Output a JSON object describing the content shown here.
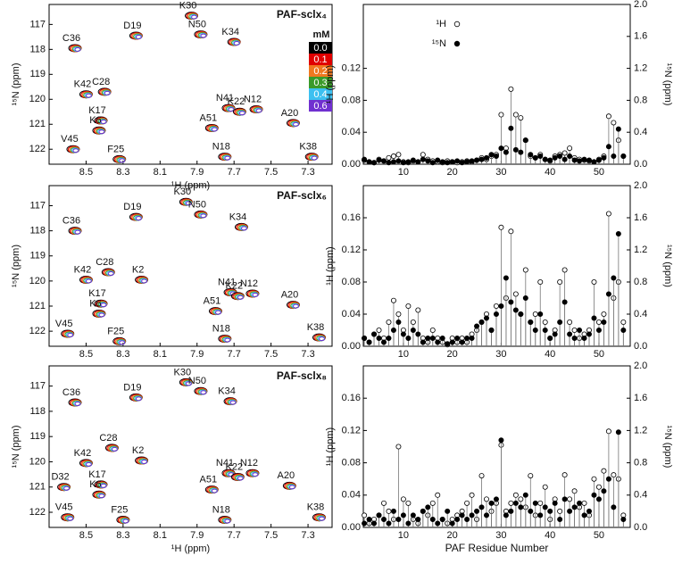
{
  "chart_data": [
    {
      "type": "nmr",
      "title": "PAF-sclx₄",
      "xlabel": "¹H (ppm)",
      "ylabel": "¹⁵N (ppm)",
      "xlim": [
        8.7,
        7.17
      ],
      "ylim": [
        116.2,
        122.6
      ],
      "xticks": [
        8.5,
        8.3,
        8.1,
        7.9,
        7.7,
        7.5,
        7.3
      ],
      "yticks": [
        117,
        118,
        119,
        120,
        121,
        122
      ],
      "contour_colors": [
        "#000000",
        "#e00000",
        "#f07820",
        "#3a9a2a",
        "#3cc0f0",
        "#7030d0"
      ],
      "legend_title": "mM",
      "legend_labels": [
        "0.0",
        "0.1",
        "0.2",
        "0.3",
        "0.4",
        "0.6"
      ],
      "peaks": [
        {
          "label": "C36",
          "x": 8.56,
          "y": 117.95
        },
        {
          "label": "D19",
          "x": 8.23,
          "y": 117.45
        },
        {
          "label": "K30",
          "x": 7.93,
          "y": 116.65
        },
        {
          "label": "N50",
          "x": 7.88,
          "y": 117.4
        },
        {
          "label": "K34",
          "x": 7.7,
          "y": 117.7
        },
        {
          "label": "C28",
          "x": 8.4,
          "y": 119.7
        },
        {
          "label": "K42",
          "x": 8.5,
          "y": 119.8
        },
        {
          "label": "K17",
          "x": 8.42,
          "y": 120.85
        },
        {
          "label": "K6",
          "x": 8.43,
          "y": 121.25
        },
        {
          "label": "V45",
          "x": 8.57,
          "y": 122.0
        },
        {
          "label": "F25",
          "x": 8.32,
          "y": 122.4
        },
        {
          "label": "N41",
          "x": 7.73,
          "y": 120.35
        },
        {
          "label": "K22",
          "x": 7.67,
          "y": 120.5
        },
        {
          "label": "N12",
          "x": 7.58,
          "y": 120.4
        },
        {
          "label": "A51",
          "x": 7.82,
          "y": 121.15
        },
        {
          "label": "A20",
          "x": 7.38,
          "y": 120.95
        },
        {
          "label": "N18",
          "x": 7.75,
          "y": 122.3
        },
        {
          "label": "K38",
          "x": 7.28,
          "y": 122.3
        }
      ]
    },
    {
      "type": "lollipop",
      "ylabel": "¹H (ppm)",
      "y2label": "¹⁵N (ppm)",
      "legend_position": "upper left",
      "xlim": [
        1.8,
        56.4
      ],
      "xticks": [
        10,
        20,
        30,
        40,
        50
      ],
      "ylim": [
        0,
        0.2
      ],
      "yticks": [
        {
          "value": 0,
          "label": "0.00"
        },
        {
          "value": 0.04,
          "label": "0.04"
        },
        {
          "value": 0.08,
          "label": "0.08"
        },
        {
          "value": 0.12,
          "label": "0.12"
        }
      ],
      "y2lim": [
        0,
        2.0
      ],
      "y2ticks": [
        {
          "value": 0,
          "label": "0.0"
        },
        {
          "value": 0.4,
          "label": "0.4"
        },
        {
          "value": 0.8,
          "label": "0.8"
        },
        {
          "value": 1.2,
          "label": "1.2"
        },
        {
          "value": 1.6,
          "label": "1.6"
        },
        {
          "value": 2.0,
          "label": "2.0"
        }
      ],
      "x": [
        2,
        3,
        4,
        5,
        6,
        7,
        8,
        9,
        10,
        11,
        12,
        13,
        14,
        15,
        16,
        17,
        18,
        19,
        20,
        21,
        22,
        23,
        24,
        25,
        26,
        27,
        28,
        29,
        30,
        31,
        32,
        33,
        34,
        35,
        36,
        37,
        38,
        39,
        40,
        41,
        42,
        43,
        44,
        45,
        46,
        47,
        48,
        49,
        50,
        51,
        52,
        53,
        54,
        55
      ],
      "series": [
        {
          "name": "¹H",
          "color": "#ffffff",
          "values": [
            0.005,
            0.003,
            0.002,
            0.006,
            0.004,
            0.008,
            0.01,
            0.012,
            0.003,
            0.002,
            0.004,
            0.003,
            0.012,
            0.006,
            0.004,
            0.003,
            0.002,
            0.004,
            0.003,
            0.002,
            0.003,
            0.004,
            0.003,
            0.005,
            0.008,
            0.006,
            0.01,
            0.012,
            0.062,
            0.02,
            0.094,
            0.062,
            0.058,
            0.03,
            0.01,
            0.008,
            0.012,
            0.006,
            0.004,
            0.01,
            0.012,
            0.014,
            0.02,
            0.008,
            0.006,
            0.005,
            0.004,
            0.003,
            0.006,
            0.01,
            0.06,
            0.052,
            0.03,
            0.01
          ]
        },
        {
          "name": "¹⁵N",
          "color": "#000000",
          "axis": "y2",
          "values": [
            0.06,
            0.03,
            0.02,
            0.05,
            0.04,
            0.02,
            0.03,
            0.04,
            0.02,
            0.03,
            0.05,
            0.03,
            0.06,
            0.04,
            0.02,
            0.05,
            0.03,
            0.02,
            0.03,
            0.04,
            0.02,
            0.03,
            0.04,
            0.05,
            0.06,
            0.08,
            0.12,
            0.1,
            0.2,
            0.15,
            0.45,
            0.18,
            0.15,
            0.3,
            0.12,
            0.08,
            0.1,
            0.06,
            0.05,
            0.08,
            0.1,
            0.06,
            0.1,
            0.05,
            0.04,
            0.06,
            0.05,
            0.03,
            0.05,
            0.08,
            0.22,
            0.1,
            0.44,
            0.1
          ]
        }
      ]
    },
    {
      "type": "nmr",
      "title": "PAF-sclx₆",
      "xlim": [
        8.7,
        7.17
      ],
      "ylim": [
        116.2,
        122.6
      ],
      "xticks": [
        8.5,
        8.3,
        8.1,
        7.9,
        7.7,
        7.5,
        7.3
      ],
      "yticks": [
        117,
        118,
        119,
        120,
        121,
        122
      ],
      "ylabel": "¹⁵N (ppm)",
      "contour_colors": [
        "#000000",
        "#e00000",
        "#f07820",
        "#3a9a2a",
        "#3cc0f0",
        "#7030d0"
      ],
      "peaks": [
        {
          "label": "C36",
          "x": 8.56,
          "y": 118.0
        },
        {
          "label": "D19",
          "x": 8.23,
          "y": 117.45
        },
        {
          "label": "K30",
          "x": 7.96,
          "y": 116.85
        },
        {
          "label": "N50",
          "x": 7.88,
          "y": 117.35
        },
        {
          "label": "K34",
          "x": 7.66,
          "y": 117.85
        },
        {
          "label": "C28",
          "x": 8.38,
          "y": 119.65
        },
        {
          "label": "K42",
          "x": 8.5,
          "y": 119.95
        },
        {
          "label": "K2",
          "x": 8.2,
          "y": 119.95
        },
        {
          "label": "K17",
          "x": 8.42,
          "y": 120.9
        },
        {
          "label": "K6",
          "x": 8.43,
          "y": 121.3
        },
        {
          "label": "V45",
          "x": 8.6,
          "y": 122.1
        },
        {
          "label": "F25",
          "x": 8.32,
          "y": 122.4
        },
        {
          "label": "N41",
          "x": 7.72,
          "y": 120.45
        },
        {
          "label": "K22",
          "x": 7.68,
          "y": 120.6
        },
        {
          "label": "N12",
          "x": 7.6,
          "y": 120.5
        },
        {
          "label": "A51",
          "x": 7.8,
          "y": 121.2
        },
        {
          "label": "A20",
          "x": 7.38,
          "y": 120.95
        },
        {
          "label": "N18",
          "x": 7.75,
          "y": 122.3
        },
        {
          "label": "K38",
          "x": 7.24,
          "y": 122.25
        }
      ]
    },
    {
      "type": "lollipop",
      "ylabel": "¹H (ppm)",
      "y2label": "¹⁵N (ppm)",
      "xlim": [
        1.8,
        56.4
      ],
      "xticks": [
        10,
        20,
        30,
        40,
        50
      ],
      "ylim": [
        0,
        0.2
      ],
      "yticks": [
        {
          "value": 0,
          "label": "0.00"
        },
        {
          "value": 0.04,
          "label": "0.04"
        },
        {
          "value": 0.08,
          "label": "0.08"
        },
        {
          "value": 0.12,
          "label": "0.12"
        },
        {
          "value": 0.16,
          "label": "0.16"
        }
      ],
      "y2lim": [
        0,
        2.0
      ],
      "y2ticks": [
        {
          "value": 0,
          "label": "0.0"
        },
        {
          "value": 0.4,
          "label": "0.4"
        },
        {
          "value": 0.8,
          "label": "0.8"
        },
        {
          "value": 1.2,
          "label": "1.2"
        },
        {
          "value": 1.6,
          "label": "1.6"
        },
        {
          "value": 2.0,
          "label": "2.0"
        }
      ],
      "x": [
        2,
        3,
        4,
        5,
        6,
        7,
        8,
        9,
        10,
        11,
        12,
        13,
        14,
        15,
        16,
        17,
        18,
        19,
        20,
        21,
        22,
        23,
        24,
        25,
        26,
        27,
        28,
        29,
        30,
        31,
        32,
        33,
        34,
        35,
        36,
        37,
        38,
        39,
        40,
        41,
        42,
        43,
        44,
        45,
        46,
        47,
        48,
        49,
        50,
        51,
        52,
        53,
        54,
        55
      ],
      "series": [
        {
          "name": "¹H",
          "color": "#ffffff",
          "values": [
            0.01,
            0.005,
            0.015,
            0.02,
            0.01,
            0.03,
            0.057,
            0.04,
            0.02,
            0.05,
            0.03,
            0.045,
            0.01,
            0.005,
            0.02,
            0.01,
            0.005,
            0.002,
            0.01,
            0.005,
            0.01,
            0.005,
            0.015,
            0.02,
            0.03,
            0.04,
            0.02,
            0.05,
            0.148,
            0.06,
            0.143,
            0.065,
            0.04,
            0.095,
            0.03,
            0.04,
            0.08,
            0.03,
            0.01,
            0.02,
            0.08,
            0.095,
            0.03,
            0.02,
            0.01,
            0.015,
            0.02,
            0.08,
            0.03,
            0.04,
            0.165,
            0.06,
            0.08,
            0.03
          ]
        },
        {
          "name": "¹⁵N",
          "color": "#000000",
          "axis": "y2",
          "values": [
            0.1,
            0.05,
            0.15,
            0.1,
            0.05,
            0.1,
            0.2,
            0.3,
            0.15,
            0.1,
            0.2,
            0.15,
            0.05,
            0.1,
            0.1,
            0.05,
            0.1,
            0.03,
            0.05,
            0.1,
            0.05,
            0.1,
            0.1,
            0.25,
            0.3,
            0.35,
            0.2,
            0.4,
            0.5,
            0.85,
            0.55,
            0.45,
            0.4,
            0.6,
            0.3,
            0.2,
            0.4,
            0.2,
            0.1,
            0.15,
            0.3,
            0.55,
            0.15,
            0.1,
            0.2,
            0.1,
            0.15,
            0.35,
            0.2,
            0.3,
            0.65,
            0.85,
            1.4,
            0.2
          ]
        }
      ]
    },
    {
      "type": "nmr",
      "title": "PAF-sclx₈",
      "xlabel": "¹H (ppm)",
      "ylabel": "¹⁵N (ppm)",
      "xlim": [
        8.7,
        7.17
      ],
      "ylim": [
        116.2,
        122.6
      ],
      "xticks": [
        8.5,
        8.3,
        8.1,
        7.9,
        7.7,
        7.5,
        7.3
      ],
      "yticks": [
        117,
        118,
        119,
        120,
        121,
        122
      ],
      "contour_colors": [
        "#000000",
        "#e00000",
        "#f07820",
        "#3a9a2a",
        "#3cc0f0",
        "#7030d0"
      ],
      "peaks": [
        {
          "label": "C36",
          "x": 8.56,
          "y": 117.65
        },
        {
          "label": "D19",
          "x": 8.23,
          "y": 117.45
        },
        {
          "label": "K30",
          "x": 7.96,
          "y": 116.85
        },
        {
          "label": "N50",
          "x": 7.88,
          "y": 117.2
        },
        {
          "label": "K34",
          "x": 7.72,
          "y": 117.6
        },
        {
          "label": "C28",
          "x": 8.36,
          "y": 119.45
        },
        {
          "label": "K42",
          "x": 8.5,
          "y": 120.05
        },
        {
          "label": "K2",
          "x": 8.2,
          "y": 119.95
        },
        {
          "label": "D32",
          "x": 8.62,
          "y": 121.0
        },
        {
          "label": "K17",
          "x": 8.42,
          "y": 120.9
        },
        {
          "label": "K6",
          "x": 8.43,
          "y": 121.3
        },
        {
          "label": "V45",
          "x": 8.6,
          "y": 122.2
        },
        {
          "label": "F25",
          "x": 8.3,
          "y": 122.3
        },
        {
          "label": "N41",
          "x": 7.73,
          "y": 120.45
        },
        {
          "label": "K22",
          "x": 7.68,
          "y": 120.6
        },
        {
          "label": "N12",
          "x": 7.6,
          "y": 120.45
        },
        {
          "label": "A51",
          "x": 7.82,
          "y": 121.1
        },
        {
          "label": "A20",
          "x": 7.4,
          "y": 120.95
        },
        {
          "label": "N18",
          "x": 7.75,
          "y": 122.3
        },
        {
          "label": "K38",
          "x": 7.24,
          "y": 122.2
        }
      ]
    },
    {
      "type": "lollipop",
      "ylabel": "¹H (ppm)",
      "y2label": "¹⁵N (ppm)",
      "xlabel": "PAF Residue Number",
      "xlim": [
        1.8,
        56.4
      ],
      "xticks": [
        10,
        20,
        30,
        40,
        50
      ],
      "ylim": [
        0,
        0.2
      ],
      "yticks": [
        {
          "value": 0,
          "label": "0.00"
        },
        {
          "value": 0.04,
          "label": "0.04"
        },
        {
          "value": 0.08,
          "label": "0.08"
        },
        {
          "value": 0.12,
          "label": "0.12"
        },
        {
          "value": 0.16,
          "label": "0.16"
        }
      ],
      "y2lim": [
        0,
        2.0
      ],
      "y2ticks": [
        {
          "value": 0,
          "label": "0.0"
        },
        {
          "value": 0.4,
          "label": "0.4"
        },
        {
          "value": 0.8,
          "label": "0.8"
        },
        {
          "value": 1.2,
          "label": "1.2"
        },
        {
          "value": 1.6,
          "label": "1.6"
        },
        {
          "value": 2.0,
          "label": "2.0"
        }
      ],
      "x": [
        2,
        3,
        4,
        5,
        6,
        7,
        8,
        9,
        10,
        11,
        12,
        13,
        14,
        15,
        16,
        17,
        18,
        19,
        20,
        21,
        22,
        23,
        24,
        25,
        26,
        27,
        28,
        29,
        30,
        31,
        32,
        33,
        34,
        35,
        36,
        37,
        38,
        39,
        40,
        41,
        42,
        43,
        44,
        45,
        46,
        47,
        48,
        49,
        50,
        51,
        52,
        53,
        54,
        55
      ],
      "series": [
        {
          "name": "¹H",
          "color": "#ffffff",
          "values": [
            0.015,
            0.005,
            0.01,
            0.015,
            0.03,
            0.02,
            0.01,
            0.1,
            0.035,
            0.03,
            0.01,
            0.005,
            0.02,
            0.015,
            0.03,
            0.04,
            0.01,
            0.005,
            0.01,
            0.015,
            0.02,
            0.03,
            0.04,
            0.01,
            0.064,
            0.035,
            0.02,
            0.03,
            0.102,
            0.02,
            0.03,
            0.04,
            0.035,
            0.025,
            0.064,
            0.015,
            0.03,
            0.05,
            0.01,
            0.035,
            0.02,
            0.065,
            0.035,
            0.045,
            0.025,
            0.03,
            0.015,
            0.06,
            0.05,
            0.07,
            0.119,
            0.065,
            0.06,
            0.015
          ]
        },
        {
          "name": "¹⁵N",
          "color": "#000000",
          "axis": "y2",
          "values": [
            0.05,
            0.1,
            0.05,
            0.15,
            0.1,
            0.05,
            0.2,
            0.1,
            0.15,
            0.05,
            0.15,
            0.1,
            0.2,
            0.25,
            0.1,
            0.05,
            0.1,
            0.2,
            0.05,
            0.1,
            0.15,
            0.1,
            0.15,
            0.2,
            0.25,
            0.15,
            0.3,
            0.35,
            1.08,
            0.15,
            0.2,
            0.3,
            0.25,
            0.4,
            0.2,
            0.3,
            0.15,
            0.25,
            0.2,
            0.3,
            0.1,
            0.35,
            0.2,
            0.25,
            0.3,
            0.15,
            0.2,
            0.4,
            0.35,
            0.45,
            0.6,
            0.25,
            1.18,
            0.1
          ]
        }
      ]
    }
  ]
}
